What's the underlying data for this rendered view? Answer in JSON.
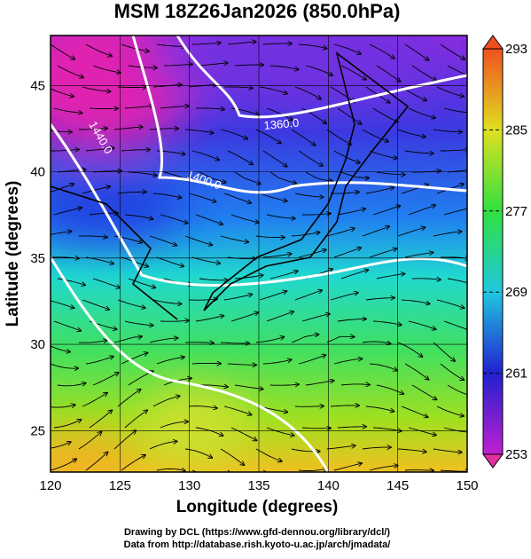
{
  "title": "MSM 18Z26Jan2026 (850.0hPa)",
  "x_axis": {
    "label": "Longitude (degrees)",
    "lim": [
      120,
      150
    ],
    "ticks": [
      120,
      125,
      130,
      135,
      140,
      145,
      150
    ]
  },
  "y_axis": {
    "label": "Latitude  (degrees)",
    "lim": [
      22.6,
      47.9
    ],
    "ticks": [
      25,
      30,
      35,
      40,
      45
    ]
  },
  "colorbar": {
    "lim": [
      253,
      293
    ],
    "ticks": [
      253,
      261,
      269,
      277,
      285,
      293
    ]
  },
  "contour_labels": [
    "1440.0",
    "1400.0",
    "1360.0"
  ],
  "footer": [
    "Drawing by DCL (https://www.gfd-dennou.org/library/dcl/)",
    "Data from http://database.rish.kyoto-u.ac.jp/arch/jmadata/"
  ]
}
